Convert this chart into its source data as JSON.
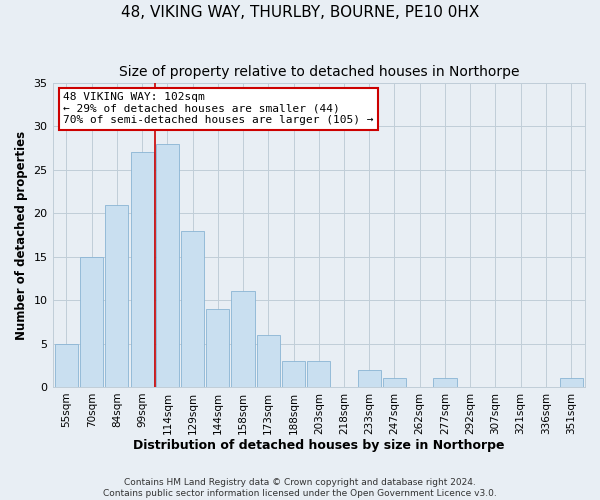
{
  "title": "48, VIKING WAY, THURLBY, BOURNE, PE10 0HX",
  "subtitle": "Size of property relative to detached houses in Northorpe",
  "xlabel": "Distribution of detached houses by size in Northorpe",
  "ylabel": "Number of detached properties",
  "bar_labels": [
    "55sqm",
    "70sqm",
    "84sqm",
    "99sqm",
    "114sqm",
    "129sqm",
    "144sqm",
    "158sqm",
    "173sqm",
    "188sqm",
    "203sqm",
    "218sqm",
    "233sqm",
    "247sqm",
    "262sqm",
    "277sqm",
    "292sqm",
    "307sqm",
    "321sqm",
    "336sqm",
    "351sqm"
  ],
  "bar_values": [
    5,
    15,
    21,
    27,
    28,
    18,
    9,
    11,
    6,
    3,
    3,
    0,
    2,
    1,
    0,
    1,
    0,
    0,
    0,
    0,
    1
  ],
  "bar_color": "#c9dff0",
  "bar_edge_color": "#8ab4d4",
  "ylim": [
    0,
    35
  ],
  "yticks": [
    0,
    5,
    10,
    15,
    20,
    25,
    30,
    35
  ],
  "vline_color": "#cc0000",
  "vline_x_index": 3.5,
  "annotation_text": "48 VIKING WAY: 102sqm\n← 29% of detached houses are smaller (44)\n70% of semi-detached houses are larger (105) →",
  "annotation_box_facecolor": "#ffffff",
  "annotation_box_edgecolor": "#cc0000",
  "footer1": "Contains HM Land Registry data © Crown copyright and database right 2024.",
  "footer2": "Contains public sector information licensed under the Open Government Licence v3.0.",
  "fig_facecolor": "#e8eef4",
  "plot_facecolor": "#e8eef4",
  "grid_color": "#c0cdd8",
  "title_fontsize": 11,
  "subtitle_fontsize": 10,
  "tick_label_fontsize": 7.5,
  "axis_label_fontsize": 9,
  "footer_fontsize": 6.5,
  "annotation_fontsize": 8,
  "ylabel_fontsize": 8.5
}
